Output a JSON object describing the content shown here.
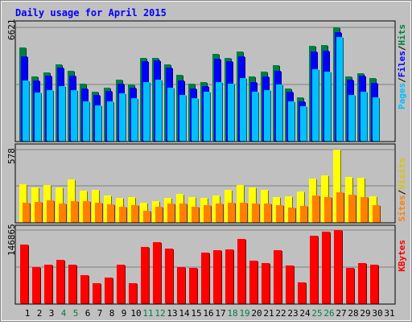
{
  "title": "Daily usage for April 2015",
  "colors": {
    "background": "#c0c0c0",
    "title": "#0000ff",
    "hits": "#008040",
    "files": "#0000ff",
    "pages": "#00c0ff",
    "visits": "#ffff00",
    "sites": "#ff8000",
    "kbytes": "#ff0000",
    "weekend_day": "#008040",
    "weekday": "#000000"
  },
  "chart_data": [
    {
      "type": "bar",
      "panel": "hits_files_pages",
      "axis_max_label": "6621",
      "right_label_parts": [
        "Pages",
        "/",
        "Files",
        "/",
        "Hits"
      ],
      "categories": [
        "1",
        "2",
        "3",
        "4",
        "5",
        "6",
        "7",
        "8",
        "9",
        "10",
        "11",
        "12",
        "13",
        "14",
        "15",
        "16",
        "17",
        "18",
        "19",
        "20",
        "21",
        "22",
        "23",
        "24",
        "25",
        "26",
        "27",
        "28",
        "29",
        "30",
        "31"
      ],
      "ylim": [
        0,
        6621
      ],
      "series": [
        {
          "name": "Hits",
          "values": [
            5450,
            3750,
            4000,
            4450,
            4100,
            3350,
            2850,
            3100,
            3550,
            3300,
            4850,
            4850,
            4450,
            3850,
            3350,
            3450,
            5050,
            4850,
            5200,
            3750,
            4050,
            4400,
            3050,
            2550,
            5550,
            5600,
            6621,
            3750,
            3950,
            3650,
            null
          ]
        },
        {
          "name": "Files",
          "values": [
            4950,
            3500,
            3800,
            4250,
            3800,
            3050,
            2700,
            2900,
            3350,
            3100,
            4650,
            4700,
            4250,
            3500,
            3050,
            3200,
            4800,
            4650,
            4950,
            3450,
            3750,
            4100,
            2850,
            2300,
            5200,
            5250,
            6350,
            3550,
            3800,
            3400,
            null
          ]
        },
        {
          "name": "Pages",
          "values": [
            3500,
            2800,
            2950,
            3200,
            2950,
            2300,
            2050,
            2300,
            2750,
            2500,
            3450,
            3550,
            3100,
            2700,
            2500,
            2850,
            3450,
            3350,
            3650,
            2850,
            2950,
            3300,
            2300,
            2000,
            4200,
            4050,
            6050,
            2700,
            2850,
            2550,
            null
          ]
        }
      ]
    },
    {
      "type": "bar",
      "panel": "visits_sites",
      "axis_max_label": "578",
      "right_label_parts": [
        "Sites",
        "/",
        "Visits"
      ],
      "categories": [
        "1",
        "2",
        "3",
        "4",
        "5",
        "6",
        "7",
        "8",
        "9",
        "10",
        "11",
        "12",
        "13",
        "14",
        "15",
        "16",
        "17",
        "18",
        "19",
        "20",
        "21",
        "22",
        "23",
        "24",
        "25",
        "26",
        "27",
        "28",
        "29",
        "30",
        "31"
      ],
      "ylim": [
        0,
        578
      ],
      "series": [
        {
          "name": "Visits",
          "values": [
            305,
            275,
            295,
            275,
            340,
            250,
            255,
            210,
            190,
            200,
            155,
            165,
            190,
            225,
            200,
            190,
            215,
            260,
            295,
            275,
            255,
            200,
            205,
            245,
            350,
            375,
            578,
            360,
            355,
            205,
            null
          ]
        },
        {
          "name": "Sites",
          "values": [
            155,
            160,
            175,
            150,
            170,
            165,
            155,
            140,
            125,
            135,
            90,
            125,
            145,
            150,
            120,
            135,
            145,
            155,
            155,
            150,
            145,
            135,
            115,
            130,
            215,
            200,
            235,
            220,
            200,
            135,
            null
          ]
        }
      ]
    },
    {
      "type": "bar",
      "panel": "kbytes",
      "axis_max_label": "146865",
      "right_label_parts": [
        "KBytes"
      ],
      "categories": [
        "1",
        "2",
        "3",
        "4",
        "5",
        "6",
        "7",
        "8",
        "9",
        "10",
        "11",
        "12",
        "13",
        "14",
        "15",
        "16",
        "17",
        "18",
        "19",
        "20",
        "21",
        "22",
        "23",
        "24",
        "25",
        "26",
        "27",
        "28",
        "29",
        "30",
        "31"
      ],
      "ylim": [
        0,
        146865
      ],
      "series": [
        {
          "name": "KBytes",
          "values": [
            118000,
            73000,
            78000,
            87000,
            77000,
            57000,
            41000,
            52000,
            78000,
            41000,
            113000,
            123000,
            110000,
            73000,
            71000,
            101000,
            107000,
            108000,
            129000,
            86000,
            81000,
            106000,
            76000,
            42000,
            136000,
            143000,
            146865,
            71000,
            81000,
            78000,
            null
          ]
        }
      ]
    }
  ],
  "days": [
    {
      "label": "1",
      "weekend": false
    },
    {
      "label": "2",
      "weekend": false
    },
    {
      "label": "3",
      "weekend": false
    },
    {
      "label": "4",
      "weekend": true
    },
    {
      "label": "5",
      "weekend": true
    },
    {
      "label": "6",
      "weekend": false
    },
    {
      "label": "7",
      "weekend": false
    },
    {
      "label": "8",
      "weekend": false
    },
    {
      "label": "9",
      "weekend": false
    },
    {
      "label": "10",
      "weekend": false
    },
    {
      "label": "11",
      "weekend": true
    },
    {
      "label": "12",
      "weekend": true
    },
    {
      "label": "13",
      "weekend": false
    },
    {
      "label": "14",
      "weekend": false
    },
    {
      "label": "15",
      "weekend": false
    },
    {
      "label": "16",
      "weekend": false
    },
    {
      "label": "17",
      "weekend": false
    },
    {
      "label": "18",
      "weekend": true
    },
    {
      "label": "19",
      "weekend": true
    },
    {
      "label": "20",
      "weekend": false
    },
    {
      "label": "21",
      "weekend": false
    },
    {
      "label": "22",
      "weekend": false
    },
    {
      "label": "23",
      "weekend": false
    },
    {
      "label": "24",
      "weekend": false
    },
    {
      "label": "25",
      "weekend": true
    },
    {
      "label": "26",
      "weekend": true
    },
    {
      "label": "27",
      "weekend": false
    },
    {
      "label": "28",
      "weekend": false
    },
    {
      "label": "29",
      "weekend": false
    },
    {
      "label": "30",
      "weekend": false
    },
    {
      "label": "31",
      "weekend": false
    }
  ]
}
